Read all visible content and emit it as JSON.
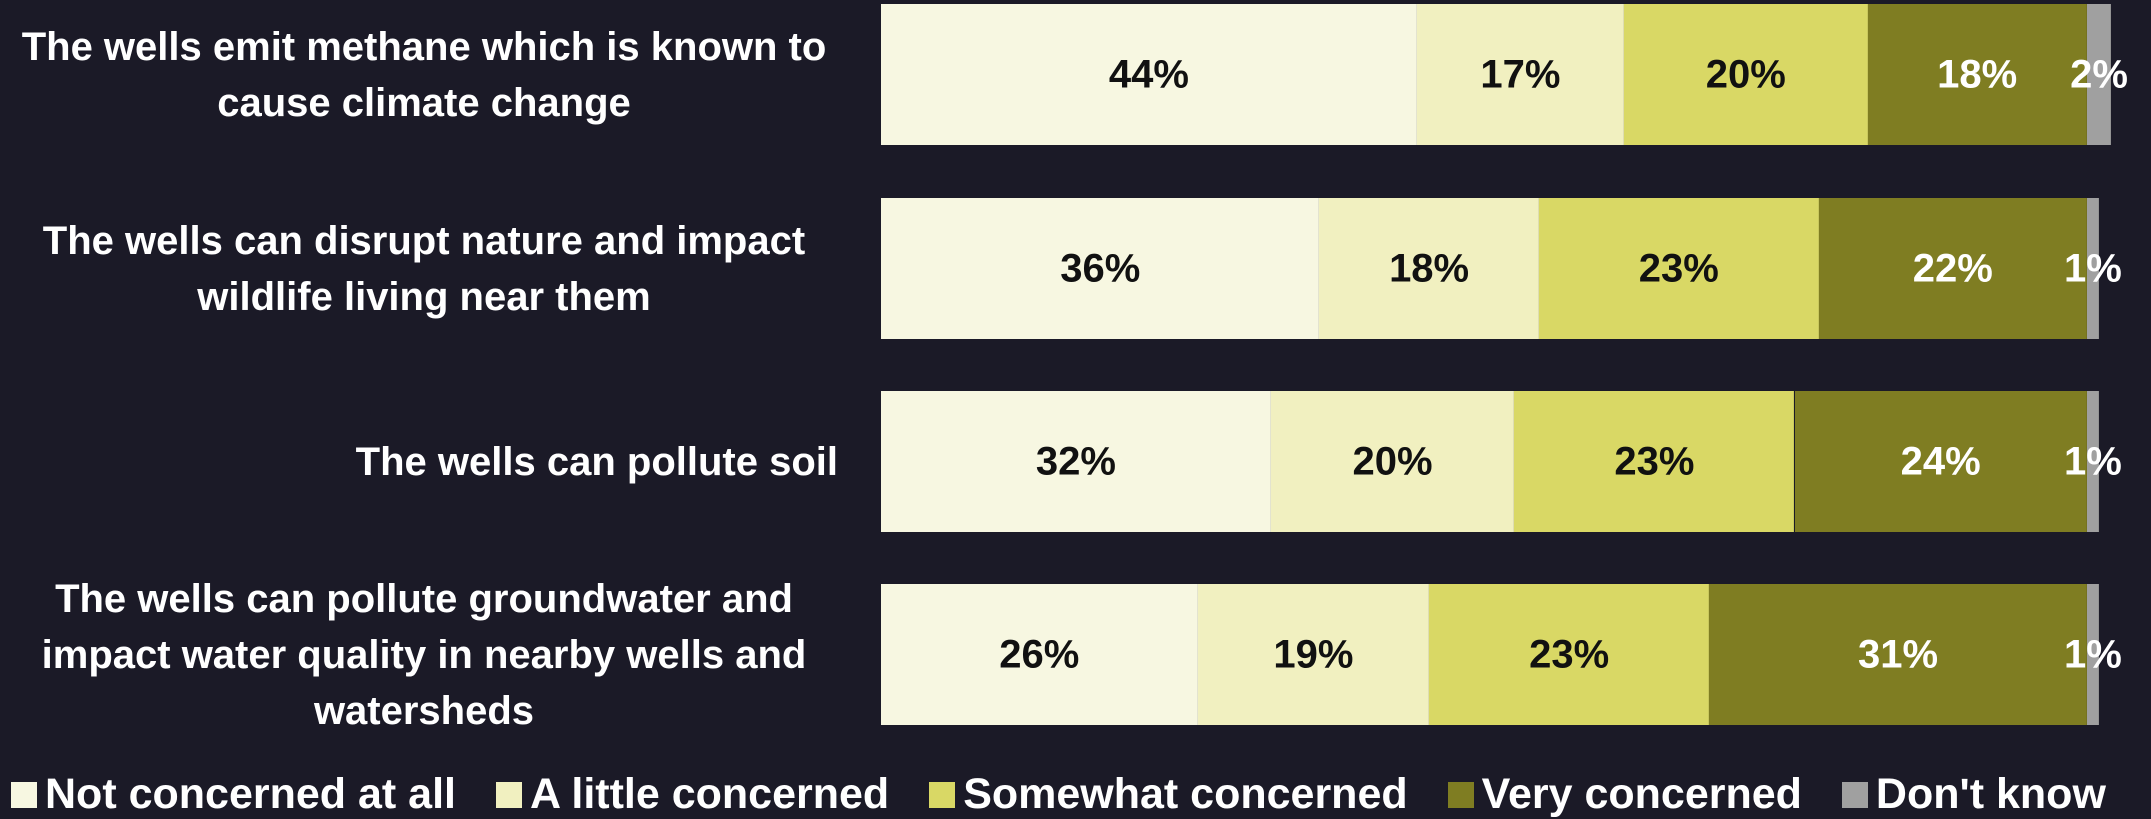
{
  "chart_data": {
    "type": "stacked-bar-horizontal",
    "categories": [
      "The wells emit methane which is known to cause climate change",
      "The wells can disrupt nature and impact wildlife living near them",
      "The wells can pollute soil",
      "The wells can pollute groundwater and impact water quality in nearby wells and watersheds"
    ],
    "xlim": [
      0,
      100
    ],
    "legend": "bottom",
    "series": [
      {
        "name": "Not concerned at all",
        "color": "#f7f7e1",
        "label_color": "#111111",
        "values": [
          44,
          36,
          32,
          26
        ],
        "value_labels": [
          "44%",
          "36%",
          "32%",
          "26%"
        ]
      },
      {
        "name": "A little concerned",
        "color": "#f1f0c0",
        "label_color": "#111111",
        "values": [
          17,
          18,
          20,
          19
        ],
        "value_labels": [
          "17%",
          "18%",
          "20%",
          "19%"
        ]
      },
      {
        "name": "Somewhat concerned",
        "color": "#d9d865",
        "label_color": "#111111",
        "values": [
          20,
          23,
          23,
          23
        ],
        "value_labels": [
          "20%",
          "23%",
          "23%",
          "23%"
        ]
      },
      {
        "name": "Very concerned",
        "color": "#7f7d22",
        "label_color": "#ffffff",
        "values": [
          18,
          22,
          24,
          31
        ],
        "value_labels": [
          "18%",
          "22%",
          "24%",
          "31%"
        ]
      },
      {
        "name": "Don't know",
        "color": "#a0a0a0",
        "label_color": "#ffffff",
        "values": [
          2,
          1,
          1,
          1
        ],
        "value_labels": [
          "2%",
          "1%",
          "1%",
          "1%"
        ]
      }
    ]
  }
}
